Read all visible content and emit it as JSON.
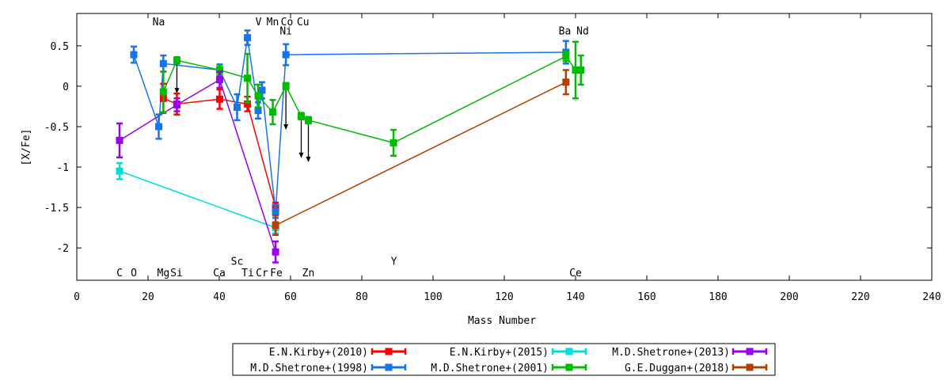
{
  "chart_data": {
    "type": "line",
    "xlabel": "Mass Number",
    "ylabel": "[X/Fe]",
    "xlim": [
      0,
      240
    ],
    "ylim": [
      -2.4,
      0.9
    ],
    "xticks": [
      0,
      20,
      40,
      60,
      80,
      100,
      120,
      140,
      160,
      180,
      200,
      220,
      240
    ],
    "yticks": [
      0.5,
      0,
      -0.5,
      -1,
      -1.5,
      -2
    ],
    "ytick_labels": [
      "0.5",
      "0",
      "-0.5",
      "-1",
      "-1.5",
      "-2"
    ],
    "grid": false,
    "legend_position": "bottom-center",
    "element_labels": [
      {
        "text": "C",
        "x": 12,
        "y": -2.3
      },
      {
        "text": "O",
        "x": 16,
        "y": -2.3
      },
      {
        "text": "Na",
        "x": 23,
        "y": 0.8
      },
      {
        "text": "Mg",
        "x": 24.3,
        "y": -2.3
      },
      {
        "text": "Si",
        "x": 28,
        "y": -2.3
      },
      {
        "text": "Ca",
        "x": 40,
        "y": -2.3
      },
      {
        "text": "Sc",
        "x": 45,
        "y": -2.16
      },
      {
        "text": "Ti",
        "x": 48,
        "y": -2.3
      },
      {
        "text": "V",
        "x": 51,
        "y": 0.8
      },
      {
        "text": "Cr",
        "x": 52,
        "y": -2.3
      },
      {
        "text": "Mn",
        "x": 55,
        "y": 0.8
      },
      {
        "text": "Fe",
        "x": 56,
        "y": -2.3
      },
      {
        "text": "Co",
        "x": 59,
        "y": 0.8
      },
      {
        "text": "Ni",
        "x": 58.7,
        "y": 0.69
      },
      {
        "text": "Cu",
        "x": 63.5,
        "y": 0.8
      },
      {
        "text": "Zn",
        "x": 65,
        "y": -2.3
      },
      {
        "text": "Y",
        "x": 89,
        "y": -2.16
      },
      {
        "text": "Ba",
        "x": 137,
        "y": 0.69
      },
      {
        "text": "Nd",
        "x": 142,
        "y": 0.69
      },
      {
        "text": "Ce",
        "x": 140,
        "y": -2.3
      }
    ],
    "series": [
      {
        "name": "E.N.Kirby+(2010)",
        "color": "#ff0000",
        "points": [
          {
            "x": 24.3,
            "y": -0.15,
            "err": 0.18
          },
          {
            "x": 28.1,
            "y": -0.22,
            "err": 0.13
          },
          {
            "x": 40.1,
            "y": -0.16,
            "err": 0.12
          },
          {
            "x": 47.9,
            "y": -0.22,
            "err": 0.09
          },
          {
            "x": 55.8,
            "y": -1.5,
            "err": 0.06
          }
        ]
      },
      {
        "name": "M.D.Shetrone+(1998)",
        "color": "#1874e8",
        "points": [
          {
            "x": 16,
            "y": 0.39,
            "err": 0.1
          },
          {
            "x": 23,
            "y": -0.5,
            "err": 0.15
          },
          {
            "x": 24.3,
            "y": 0.28,
            "err": 0.1
          },
          {
            "x": 40.1,
            "y": 0.2,
            "err": 0.07
          },
          {
            "x": 45,
            "y": -0.26,
            "err": 0.16
          },
          {
            "x": 47.9,
            "y": 0.6,
            "err": 0.09
          },
          {
            "x": 50.9,
            "y": -0.3,
            "err": 0.1
          },
          {
            "x": 52,
            "y": -0.05,
            "err": 0.1
          },
          {
            "x": 55.8,
            "y": -1.55,
            "err": 0.08
          },
          {
            "x": 58.7,
            "y": 0.39,
            "err": 0.13
          },
          {
            "x": 137.3,
            "y": 0.42,
            "err": 0.14
          }
        ]
      },
      {
        "name": "E.N.Kirby+(2015)",
        "color": "#00dddd",
        "points": [
          {
            "x": 12,
            "y": -1.05,
            "err": 0.1
          },
          {
            "x": 55.8,
            "y": -1.75,
            "err": 0.07
          }
        ]
      },
      {
        "name": "M.D.Shetrone+(2001)",
        "color": "#00bb00",
        "points": [
          {
            "x": 24.3,
            "y": -0.07,
            "err": 0.25
          },
          {
            "x": 28.1,
            "y": 0.32,
            "err": 0.04
          },
          {
            "x": 40.1,
            "y": 0.2,
            "err": 0.06
          },
          {
            "x": 47.9,
            "y": 0.1,
            "err": 0.3
          },
          {
            "x": 50.9,
            "y": -0.12,
            "err": 0.14
          },
          {
            "x": 55,
            "y": -0.32,
            "err": 0.15
          },
          {
            "x": 58.7,
            "y": 0.0,
            "err": 0.04
          },
          {
            "x": 63,
            "y": -0.37,
            "err": 0.04
          },
          {
            "x": 65,
            "y": -0.42,
            "err": 0.04
          },
          {
            "x": 88.9,
            "y": -0.7,
            "err": 0.16
          },
          {
            "x": 137.3,
            "y": 0.37,
            "err": 0.06
          },
          {
            "x": 140,
            "y": 0.2,
            "err": 0.35
          },
          {
            "x": 141.5,
            "y": 0.2,
            "err": 0.18
          }
        ]
      },
      {
        "name": "M.D.Shetrone+(2013)",
        "color": "#9900ee",
        "points": [
          {
            "x": 12,
            "y": -0.67,
            "err": 0.21
          },
          {
            "x": 28.1,
            "y": -0.23,
            "err": 0.08
          },
          {
            "x": 40.1,
            "y": 0.08,
            "err": 0.1
          },
          {
            "x": 55.8,
            "y": -2.05,
            "err": 0.13
          }
        ]
      },
      {
        "name": "G.E.Duggan+(2018)",
        "color": "#b34000",
        "points": [
          {
            "x": 55.8,
            "y": -1.72,
            "err": 0.12
          },
          {
            "x": 137.3,
            "y": 0.05,
            "err": 0.15
          }
        ]
      }
    ],
    "upper_limit_arrows": [
      {
        "x": 28.1,
        "y_from": 0.28,
        "y_to": -0.08
      },
      {
        "x": 58.7,
        "y_from": 0.0,
        "y_to": -0.53
      },
      {
        "x": 63,
        "y_from": -0.37,
        "y_to": -0.88
      },
      {
        "x": 65,
        "y_from": -0.42,
        "y_to": -0.93
      }
    ]
  }
}
